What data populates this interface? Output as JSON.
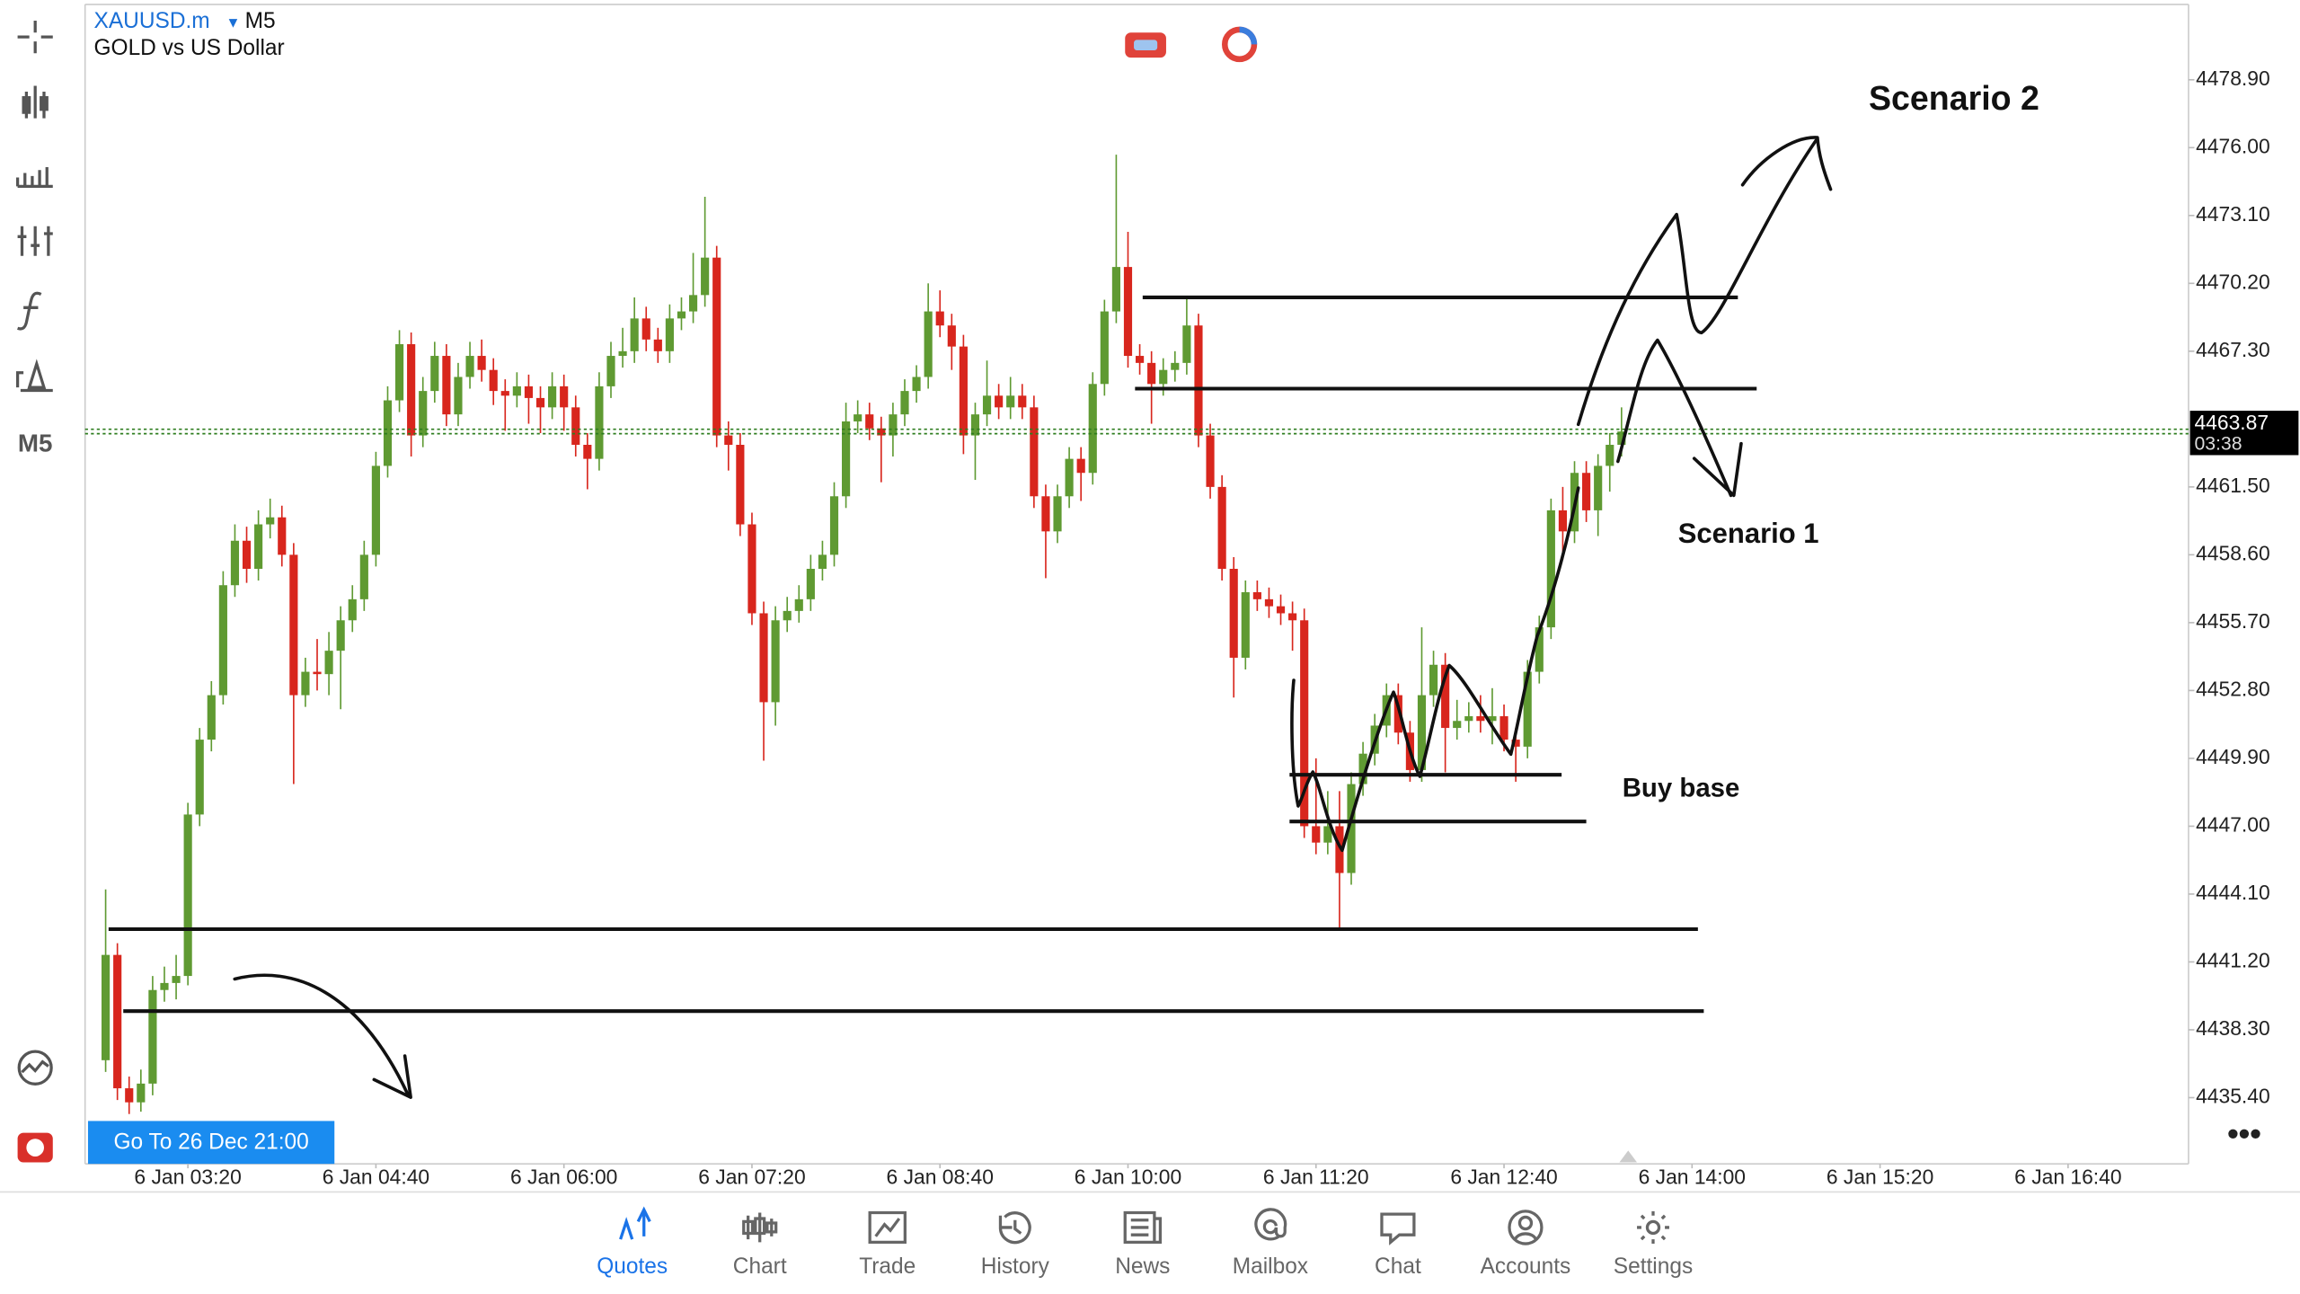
{
  "header": {
    "symbol": "XAUUSD.m",
    "timeframe": "M5",
    "description": "GOLD vs US Dollar"
  },
  "toolbar": {
    "timeframe": "M5"
  },
  "goto": "Go To 26 Dec 21:00",
  "nav": [
    "Quotes",
    "Chart",
    "Trade",
    "History",
    "News",
    "Mailbox",
    "Chat",
    "Accounts",
    "Settings"
  ],
  "chart_data": {
    "type": "candlestick",
    "up_color": "#5f9a32",
    "down_color": "#d8261d",
    "candles": [
      [
        4437,
        4444.3,
        4436.5,
        4441.5
      ],
      [
        4441.5,
        4442,
        4435.3,
        4435.8
      ],
      [
        4435.8,
        4436.3,
        4434.7,
        4435.2
      ],
      [
        4435.2,
        4436.6,
        4434.8,
        4436
      ],
      [
        4436,
        4440.6,
        4435.5,
        4440
      ],
      [
        4440,
        4441,
        4439.5,
        4440.3
      ],
      [
        4440.3,
        4441.5,
        4439.6,
        4440.6
      ],
      [
        4440.6,
        4448,
        4440.2,
        4447.5
      ],
      [
        4447.5,
        4451.2,
        4447,
        4450.7
      ],
      [
        4450.7,
        4453.2,
        4450.2,
        4452.6
      ],
      [
        4452.6,
        4457.9,
        4452.2,
        4457.3
      ],
      [
        4457.3,
        4459.9,
        4456.8,
        4459.2
      ],
      [
        4459.2,
        4459.8,
        4457.4,
        4458
      ],
      [
        4458,
        4460.5,
        4457.5,
        4459.9
      ],
      [
        4459.9,
        4461,
        4459.3,
        4460.2
      ],
      [
        4460.2,
        4460.7,
        4458.1,
        4458.6
      ],
      [
        4458.6,
        4459.1,
        4448.8,
        4452.6
      ],
      [
        4452.6,
        4454.2,
        4452.1,
        4453.6
      ],
      [
        4453.6,
        4455,
        4452.8,
        4453.5
      ],
      [
        4453.5,
        4455.3,
        4452.6,
        4454.5
      ],
      [
        4454.5,
        4456.4,
        4452,
        4455.8
      ],
      [
        4455.8,
        4457.3,
        4455.3,
        4456.7
      ],
      [
        4456.7,
        4459.2,
        4456.2,
        4458.6
      ],
      [
        4458.6,
        4463,
        4458.1,
        4462.4
      ],
      [
        4462.4,
        4465.8,
        4461.9,
        4465.2
      ],
      [
        4465.2,
        4468.2,
        4464.7,
        4467.6
      ],
      [
        4467.6,
        4468.1,
        4462.8,
        4463.7
      ],
      [
        4463.7,
        4466.2,
        4463.2,
        4465.6
      ],
      [
        4465.6,
        4467.7,
        4465.1,
        4467.1
      ],
      [
        4467.1,
        4467.6,
        4464.1,
        4464.6
      ],
      [
        4464.6,
        4466.8,
        4464.1,
        4466.2
      ],
      [
        4466.2,
        4467.7,
        4465.7,
        4467.1
      ],
      [
        4467.1,
        4467.8,
        4466,
        4466.5
      ],
      [
        4466.5,
        4467,
        4465,
        4465.6
      ],
      [
        4465.6,
        4466.1,
        4463.9,
        4465.4
      ],
      [
        4465.4,
        4466.4,
        4464.9,
        4465.8
      ],
      [
        4465.8,
        4466.3,
        4464.2,
        4465.3
      ],
      [
        4465.3,
        4465.8,
        4463.8,
        4464.9
      ],
      [
        4464.9,
        4466.4,
        4464.4,
        4465.8
      ],
      [
        4465.8,
        4466.3,
        4463.9,
        4464.9
      ],
      [
        4464.9,
        4465.4,
        4462.8,
        4463.3
      ],
      [
        4463.3,
        4463.8,
        4461.4,
        4462.7
      ],
      [
        4462.7,
        4466.4,
        4462.2,
        4465.8
      ],
      [
        4465.8,
        4467.7,
        4465.3,
        4467.1
      ],
      [
        4467.1,
        4468.3,
        4466.6,
        4467.3
      ],
      [
        4467.3,
        4469.6,
        4466.8,
        4468.7
      ],
      [
        4468.7,
        4469.2,
        4467.3,
        4467.8
      ],
      [
        4467.8,
        4468.3,
        4466.8,
        4467.3
      ],
      [
        4467.3,
        4469.3,
        4466.8,
        4468.7
      ],
      [
        4468.7,
        4469.6,
        4468.2,
        4469
      ],
      [
        4469,
        4471.5,
        4468.5,
        4469.7
      ],
      [
        4469.7,
        4473.9,
        4469.2,
        4471.3
      ],
      [
        4471.3,
        4471.8,
        4463.2,
        4463.7
      ],
      [
        4463.7,
        4464.3,
        4462.2,
        4463.3
      ],
      [
        4463.3,
        4463.8,
        4459.4,
        4459.9
      ],
      [
        4459.9,
        4460.4,
        4455.6,
        4456.1
      ],
      [
        4456.1,
        4456.6,
        4449.8,
        4452.3
      ],
      [
        4452.3,
        4456.4,
        4451.3,
        4455.8
      ],
      [
        4455.8,
        4456.8,
        4455.3,
        4456.2
      ],
      [
        4456.2,
        4457.3,
        4455.7,
        4456.7
      ],
      [
        4456.7,
        4458.6,
        4456.2,
        4458
      ],
      [
        4458,
        4459.2,
        4457.5,
        4458.6
      ],
      [
        4458.6,
        4461.7,
        4458.1,
        4461.1
      ],
      [
        4461.1,
        4465.1,
        4460.6,
        4464.3
      ],
      [
        4464.3,
        4465.2,
        4463.8,
        4464.6
      ],
      [
        4464.6,
        4465.1,
        4463.5,
        4464
      ],
      [
        4464,
        4464.5,
        4461.7,
        4463.7
      ],
      [
        4463.7,
        4465.1,
        4462.8,
        4464.6
      ],
      [
        4464.6,
        4466.1,
        4464.1,
        4465.6
      ],
      [
        4465.6,
        4466.7,
        4465.1,
        4466.2
      ],
      [
        4466.2,
        4470.2,
        4465.7,
        4469
      ],
      [
        4469,
        4469.9,
        4467.9,
        4468.4
      ],
      [
        4468.4,
        4468.9,
        4466.5,
        4467.5
      ],
      [
        4467.5,
        4468,
        4462.9,
        4463.7
      ],
      [
        4463.7,
        4465.1,
        4461.8,
        4464.6
      ],
      [
        4464.6,
        4466.9,
        4464.1,
        4465.4
      ],
      [
        4465.4,
        4465.9,
        4464.4,
        4464.9
      ],
      [
        4464.9,
        4466.2,
        4464.4,
        4465.4
      ],
      [
        4465.4,
        4465.9,
        4464.4,
        4464.9
      ],
      [
        4464.9,
        4465.4,
        4460.6,
        4461.1
      ],
      [
        4461.1,
        4461.6,
        4457.6,
        4459.6
      ],
      [
        4459.6,
        4461.6,
        4459.1,
        4461.1
      ],
      [
        4461.1,
        4463.2,
        4460.6,
        4462.7
      ],
      [
        4462.7,
        4463.2,
        4460.9,
        4462.1
      ],
      [
        4462.1,
        4466.4,
        4461.6,
        4465.9
      ],
      [
        4465.9,
        4469.5,
        4465.4,
        4469
      ],
      [
        4469,
        4475.7,
        4468.5,
        4470.9
      ],
      [
        4470.9,
        4472.4,
        4466.6,
        4467.1
      ],
      [
        4467.1,
        4467.6,
        4466.3,
        4466.8
      ],
      [
        4466.8,
        4467.3,
        4464.2,
        4465.9
      ],
      [
        4465.9,
        4467,
        4465.4,
        4466.5
      ],
      [
        4466.5,
        4467.3,
        4466,
        4466.8
      ],
      [
        4466.8,
        4469.6,
        4466.3,
        4468.4
      ],
      [
        4468.4,
        4468.9,
        4463.2,
        4463.7
      ],
      [
        4463.7,
        4464.2,
        4461,
        4461.5
      ],
      [
        4461.5,
        4462,
        4457.5,
        4458
      ],
      [
        4458,
        4458.5,
        4452.5,
        4454.2
      ],
      [
        4454.2,
        4457.5,
        4453.7,
        4457
      ],
      [
        4457,
        4457.5,
        4456.2,
        4456.7
      ],
      [
        4456.7,
        4457.2,
        4455.9,
        4456.4
      ],
      [
        4456.4,
        4456.9,
        4455.6,
        4456.1
      ],
      [
        4456.1,
        4456.6,
        4454.5,
        4455.8
      ],
      [
        4455.8,
        4456.3,
        4446.5,
        4447
      ],
      [
        4447,
        4449.9,
        4445.8,
        4446.3
      ],
      [
        4446.3,
        4448.5,
        4445.8,
        4447
      ],
      [
        4447,
        4448.5,
        4442.6,
        4445
      ],
      [
        4445,
        4449.3,
        4444.5,
        4448.8
      ],
      [
        4448.8,
        4450.6,
        4448.3,
        4450.1
      ],
      [
        4450.1,
        4451.8,
        4449.6,
        4451.3
      ],
      [
        4451.3,
        4453.1,
        4450.8,
        4452.6
      ],
      [
        4452.6,
        4453.1,
        4450.5,
        4451
      ],
      [
        4451,
        4451.5,
        4448.9,
        4449.4
      ],
      [
        4449.4,
        4455.5,
        4448.9,
        4452.6
      ],
      [
        4452.6,
        4454.5,
        4452.1,
        4453.9
      ],
      [
        4453.9,
        4454.4,
        4449.3,
        4451.2
      ],
      [
        4451.2,
        4452.4,
        4450.7,
        4451.5
      ],
      [
        4451.5,
        4452.3,
        4451,
        4451.7
      ],
      [
        4451.7,
        4452.6,
        4451,
        4451.5
      ],
      [
        4451.5,
        4452.9,
        4450.5,
        4451.7
      ],
      [
        4451.7,
        4452.2,
        4450.2,
        4450.7
      ],
      [
        4450.7,
        4451.2,
        4448.9,
        4450.4
      ],
      [
        4450.4,
        4454.1,
        4449.9,
        4453.6
      ],
      [
        4453.6,
        4456,
        4453.1,
        4455.5
      ],
      [
        4455.5,
        4461,
        4455,
        4460.5
      ],
      [
        4460.5,
        4461.5,
        4458.4,
        4459.6
      ],
      [
        4459.6,
        4462.6,
        4459.1,
        4462.1
      ],
      [
        4462.1,
        4462.6,
        4460,
        4460.5
      ],
      [
        4460.5,
        4462.9,
        4459.4,
        4462.4
      ],
      [
        4462.4,
        4463.8,
        4461.3,
        4463.3
      ],
      [
        4463.3,
        4464.9,
        4462.8,
        4463.87
      ]
    ],
    "xlim": [
      -1.75,
      177.25
    ],
    "xticks": [
      {
        "value": 7,
        "label": "6 Jan 03:20"
      },
      {
        "value": 23,
        "label": "6 Jan 04:40"
      },
      {
        "value": 39,
        "label": "6 Jan 06:00"
      },
      {
        "value": 55,
        "label": "6 Jan 07:20"
      },
      {
        "value": 71,
        "label": "6 Jan 08:40"
      },
      {
        "value": 87,
        "label": "6 Jan 10:00"
      },
      {
        "value": 103,
        "label": "6 Jan 11:20"
      },
      {
        "value": 119,
        "label": "6 Jan 12:40"
      },
      {
        "value": 135,
        "label": "6 Jan 14:00"
      },
      {
        "value": 151,
        "label": "6 Jan 15:20"
      },
      {
        "value": 167,
        "label": "6 Jan 16:40"
      }
    ],
    "ylim": [
      4432.57,
      4482.12
    ],
    "yticks": [
      {
        "value": 4478.9,
        "label": "4478.90"
      },
      {
        "value": 4476,
        "label": "4476.00"
      },
      {
        "value": 4473.1,
        "label": "4473.10"
      },
      {
        "value": 4470.2,
        "label": "4470.20"
      },
      {
        "value": 4467.3,
        "label": "4467.30"
      },
      {
        "value": 4461.5,
        "label": "4461.50"
      },
      {
        "value": 4458.6,
        "label": "4458.60"
      },
      {
        "value": 4455.7,
        "label": "4455.70"
      },
      {
        "value": 4452.8,
        "label": "4452.80"
      },
      {
        "value": 4449.9,
        "label": "4449.90"
      },
      {
        "value": 4447,
        "label": "4447.00"
      },
      {
        "value": 4444.1,
        "label": "4444.10"
      },
      {
        "value": 4441.2,
        "label": "4441.20"
      },
      {
        "value": 4438.3,
        "label": "4438.30"
      },
      {
        "value": 4435.4,
        "label": "4435.40"
      }
    ],
    "bid": 4463.87,
    "bid_color": "#2e7d1f",
    "countdown": "03:38",
    "levels": [
      {
        "price": 4469.6,
        "from": 88.25,
        "to": 138.9
      },
      {
        "price": 4465.7,
        "from": 87.6,
        "to": 140.5
      },
      {
        "price": 4449.2,
        "from": 100.75,
        "to": 123.9
      },
      {
        "price": 4447.2,
        "from": 100.75,
        "to": 126
      },
      {
        "price": 4442.6,
        "from": 0.25,
        "to": 135.5
      },
      {
        "price": 4439.1,
        "from": 1.5,
        "to": 136
      }
    ],
    "annotations": [
      "Scenario 2",
      "Scenario 1",
      "Buy base"
    ]
  }
}
